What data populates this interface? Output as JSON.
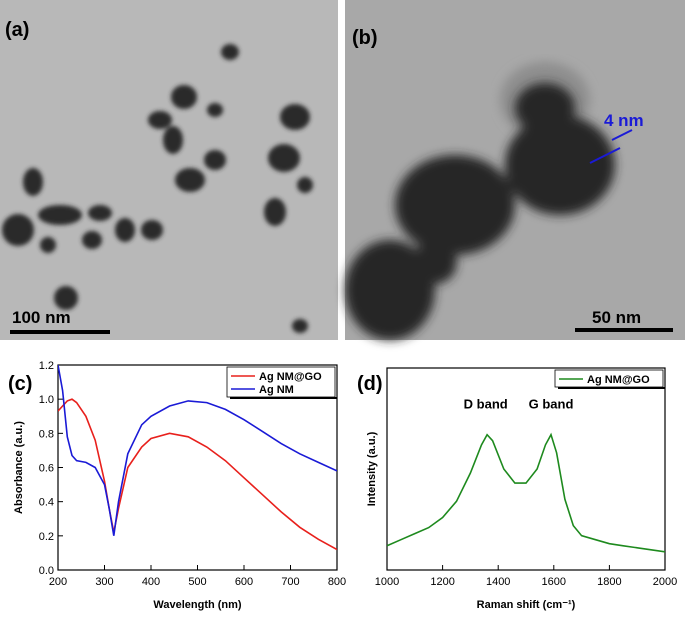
{
  "images": [
    {
      "label": "(a)",
      "scale_bar": "100 nm"
    },
    {
      "label": "(b)",
      "scale_bar": "50 nm",
      "annotation": "4 nm"
    }
  ],
  "chart_data": [
    {
      "type": "line",
      "panel": "(c)",
      "xlabel": "Wavelength (nm)",
      "ylabel": "Absorbance (a.u.)",
      "x": [
        200,
        210,
        220,
        230,
        240,
        260,
        280,
        300,
        310,
        320,
        330,
        350,
        380,
        400,
        440,
        480,
        520,
        560,
        600,
        640,
        680,
        720,
        760,
        800
      ],
      "series": [
        {
          "name": "Ag NM@GO",
          "color": "#e8201c",
          "values": [
            0.93,
            0.96,
            0.99,
            1.0,
            0.98,
            0.9,
            0.76,
            0.52,
            0.36,
            0.22,
            0.36,
            0.6,
            0.72,
            0.77,
            0.8,
            0.78,
            0.72,
            0.64,
            0.54,
            0.44,
            0.34,
            0.25,
            0.18,
            0.12
          ]
        },
        {
          "name": "Ag NM",
          "color": "#1a1ad6",
          "values": [
            1.2,
            1.05,
            0.78,
            0.67,
            0.64,
            0.63,
            0.6,
            0.5,
            0.36,
            0.2,
            0.4,
            0.68,
            0.85,
            0.9,
            0.96,
            0.99,
            0.98,
            0.94,
            0.88,
            0.81,
            0.74,
            0.68,
            0.63,
            0.58
          ]
        }
      ],
      "xlim": [
        200,
        800
      ],
      "xticks": [
        200,
        300,
        400,
        500,
        600,
        700,
        800
      ],
      "ylim": [
        0,
        1.2
      ],
      "yticks": [
        {
          "value": 0,
          "label": "0.0"
        },
        0.2,
        0.4,
        0.6,
        0.8,
        {
          "value": 1,
          "label": "1.0"
        },
        1.2
      ],
      "legend": "top-right"
    },
    {
      "type": "line",
      "panel": "(d)",
      "xlabel": "Raman shift (cm⁻¹)",
      "ylabel": "Intensity (a.u.)",
      "annotations": [
        "D band",
        "G band"
      ],
      "x": [
        1000,
        1050,
        1100,
        1150,
        1200,
        1250,
        1300,
        1340,
        1360,
        1380,
        1420,
        1460,
        1500,
        1540,
        1570,
        1590,
        1610,
        1640,
        1670,
        1700,
        1750,
        1800,
        1850,
        1900,
        1950,
        2000
      ],
      "series": [
        {
          "name": "Ag NM@GO",
          "color": "#1e8a1e",
          "values": [
            0.12,
            0.15,
            0.18,
            0.21,
            0.26,
            0.34,
            0.48,
            0.62,
            0.67,
            0.64,
            0.5,
            0.43,
            0.43,
            0.5,
            0.62,
            0.67,
            0.58,
            0.35,
            0.22,
            0.17,
            0.15,
            0.13,
            0.12,
            0.11,
            0.1,
            0.09
          ]
        }
      ],
      "xlim": [
        1000,
        2000
      ],
      "xticks": [
        1000,
        1200,
        1400,
        1600,
        1800,
        2000
      ],
      "ylim": [
        0,
        1
      ],
      "legend": "top-right"
    }
  ]
}
